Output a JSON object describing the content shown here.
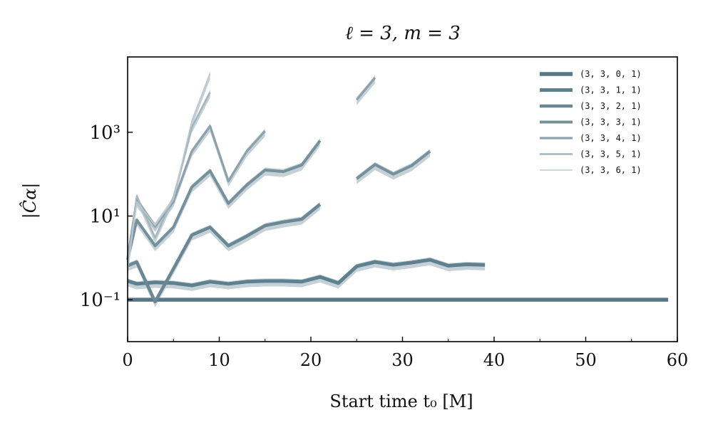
{
  "chart_data": {
    "type": "line",
    "title": "ℓ = 3, m = 3",
    "xlabel": "Start time t₀ [M]",
    "ylabel": "|Ĉα|",
    "xlim": [
      0,
      60
    ],
    "ylim_log10": [
      -2,
      4.8
    ],
    "yscale": "log",
    "xticks": [
      0,
      10,
      20,
      30,
      40,
      50,
      60
    ],
    "yticks": [
      {
        "value": 1000,
        "label": "10³"
      },
      {
        "value": 10,
        "label": "10¹"
      },
      {
        "value": 0.1,
        "label": "10⁻¹"
      }
    ],
    "legend_position": "top-right",
    "x": [
      0,
      1,
      3,
      5,
      7,
      9,
      11,
      13,
      15,
      17,
      19,
      21,
      23,
      25,
      27,
      29,
      31,
      33,
      35,
      37,
      39,
      41,
      43,
      45,
      47,
      49,
      51,
      53,
      55,
      57,
      59
    ],
    "series": [
      {
        "name": "(3, 3, 0, 1)",
        "color": "#587886",
        "values": [
          0.1,
          0.1,
          0.1,
          0.1,
          0.1,
          0.1,
          0.1,
          0.1,
          0.1,
          0.1,
          0.1,
          0.1,
          0.1,
          0.1,
          0.1,
          0.1,
          0.1,
          0.1,
          0.1,
          0.1,
          0.1,
          0.1,
          0.1,
          0.1,
          0.1,
          0.1,
          0.1,
          0.1,
          0.1,
          0.1,
          0.1
        ]
      },
      {
        "name": "(3, 3, 1, 1)",
        "color": "#5f808e",
        "values": [
          0.28,
          0.24,
          0.26,
          0.25,
          0.22,
          0.27,
          0.24,
          0.27,
          0.28,
          0.28,
          0.27,
          0.35,
          0.25,
          0.63,
          0.8,
          0.68,
          0.77,
          0.9,
          0.65,
          0.7,
          0.68,
          null,
          null,
          null,
          null,
          null,
          null,
          null,
          null,
          null,
          null
        ]
      },
      {
        "name": "(3, 3, 2, 1)",
        "color": "#6a8894",
        "values": [
          0.65,
          0.8,
          0.09,
          0.55,
          3.5,
          5.4,
          1.95,
          3.3,
          5.9,
          7.2,
          8.4,
          19,
          null,
          null,
          null,
          null,
          null,
          null,
          null,
          null,
          null,
          null,
          null,
          null,
          null,
          null,
          null,
          null,
          null,
          null,
          null
        ]
      },
      {
        "name": "(3, 3, 3, 1)",
        "color": "#74919c",
        "values": [
          0.9,
          8,
          1.95,
          5.4,
          49,
          120,
          20,
          55,
          125,
          115,
          165,
          630,
          null,
          78,
          170,
          100,
          160,
          350,
          null,
          null,
          null,
          null,
          null,
          null,
          null,
          null,
          null,
          null,
          null,
          null,
          null
        ]
      },
      {
        "name": "(3, 3, 4, 1)",
        "color": "#8ba2ac",
        "values": [
          1.0,
          25,
          5.6,
          22,
          350,
          1400,
          68,
          350,
          1070,
          null,
          null,
          null,
          null,
          6000,
          20000,
          null,
          null,
          null,
          null,
          null,
          null,
          null,
          null,
          null,
          null,
          null,
          null,
          null,
          null,
          null,
          null
        ]
      },
      {
        "name": "(3, 3, 5, 1)",
        "color": "#a3b5bd",
        "values": [
          0.7,
          30,
          3,
          28,
          1300,
          9000,
          null,
          null,
          null,
          null,
          null,
          null,
          null,
          null,
          null,
          null,
          null,
          null,
          null,
          null,
          null,
          null,
          null,
          null,
          null,
          null,
          null,
          null,
          null,
          null,
          null
        ]
      },
      {
        "name": "(3, 3, 6, 1)",
        "color": "#bccad0",
        "values": [
          0.5,
          22,
          6,
          25,
          1800,
          25000,
          null,
          null,
          null,
          null,
          null,
          null,
          null,
          null,
          null,
          null,
          null,
          null,
          null,
          null,
          null,
          null,
          null,
          null,
          null,
          null,
          null,
          null,
          null,
          null,
          null
        ]
      }
    ]
  }
}
